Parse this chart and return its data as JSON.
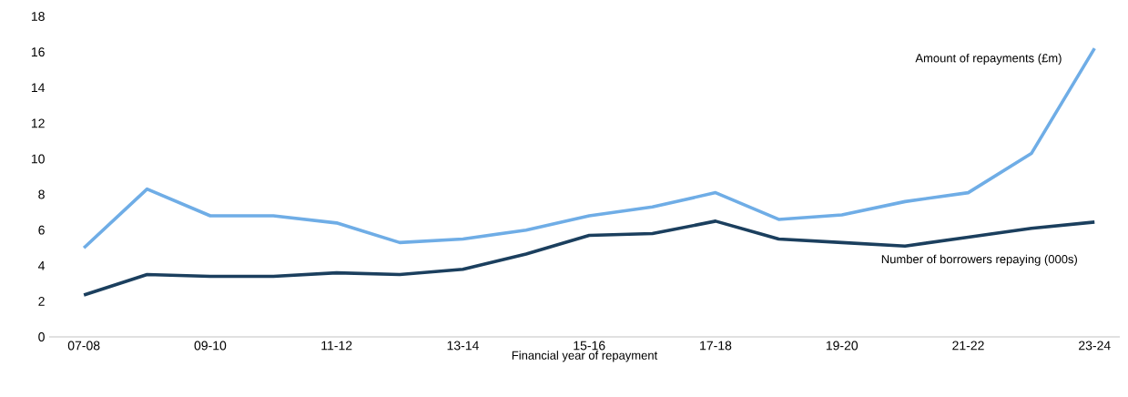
{
  "chart_data": {
    "type": "line",
    "xlabel": "Financial year of repayment",
    "categories": [
      "07-08",
      null,
      "09-10",
      null,
      "11-12",
      null,
      "13-14",
      null,
      "15-16",
      null,
      "17-18",
      null,
      "19-20",
      null,
      "21-22",
      null,
      "23-24"
    ],
    "series": [
      {
        "name": "Amount of repayments (£m)",
        "color": "#6fade6",
        "values": [
          5.0,
          8.3,
          6.8,
          6.8,
          6.4,
          5.3,
          5.5,
          6.0,
          6.8,
          7.3,
          8.1,
          6.6,
          6.85,
          7.6,
          8.1,
          10.3,
          16.2
        ]
      },
      {
        "name": "Number of borrowers repaying (000s)",
        "color": "#1b3f5e",
        "values": [
          2.35,
          3.5,
          3.4,
          3.4,
          3.6,
          3.5,
          3.8,
          4.65,
          5.7,
          5.8,
          6.5,
          5.5,
          5.3,
          5.1,
          5.6,
          6.1,
          6.45
        ]
      }
    ],
    "ylim": [
      0,
      18
    ],
    "yticks": [
      0,
      2,
      4,
      6,
      8,
      10,
      12,
      14,
      16,
      18
    ]
  }
}
